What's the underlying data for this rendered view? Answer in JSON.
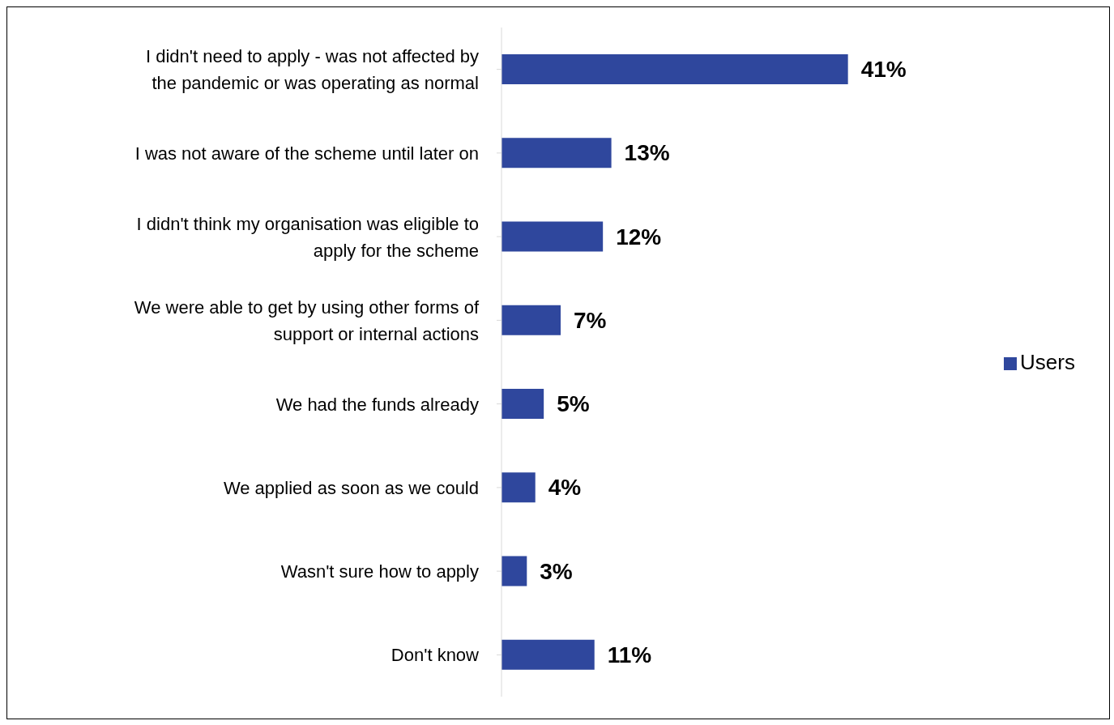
{
  "chart_data": {
    "type": "bar",
    "orientation": "horizontal",
    "categories": [
      "I didn't need to apply - was not affected by the pandemic or was operating as normal",
      "I was not aware of the scheme until later on",
      "I didn't think my organisation was eligible to apply for the scheme",
      "We were able to get by using other forms of support or internal actions",
      "We had the funds already",
      "We applied as soon as we could",
      "Wasn't sure how to apply",
      "Don't know"
    ],
    "series": [
      {
        "name": "Users",
        "color": "#2f479d",
        "values": [
          41,
          13,
          12,
          7,
          5,
          4,
          3,
          11
        ],
        "value_labels": [
          "41%",
          "13%",
          "12%",
          "7%",
          "5%",
          "4%",
          "3%",
          "11%"
        ]
      }
    ],
    "legend": "right"
  }
}
